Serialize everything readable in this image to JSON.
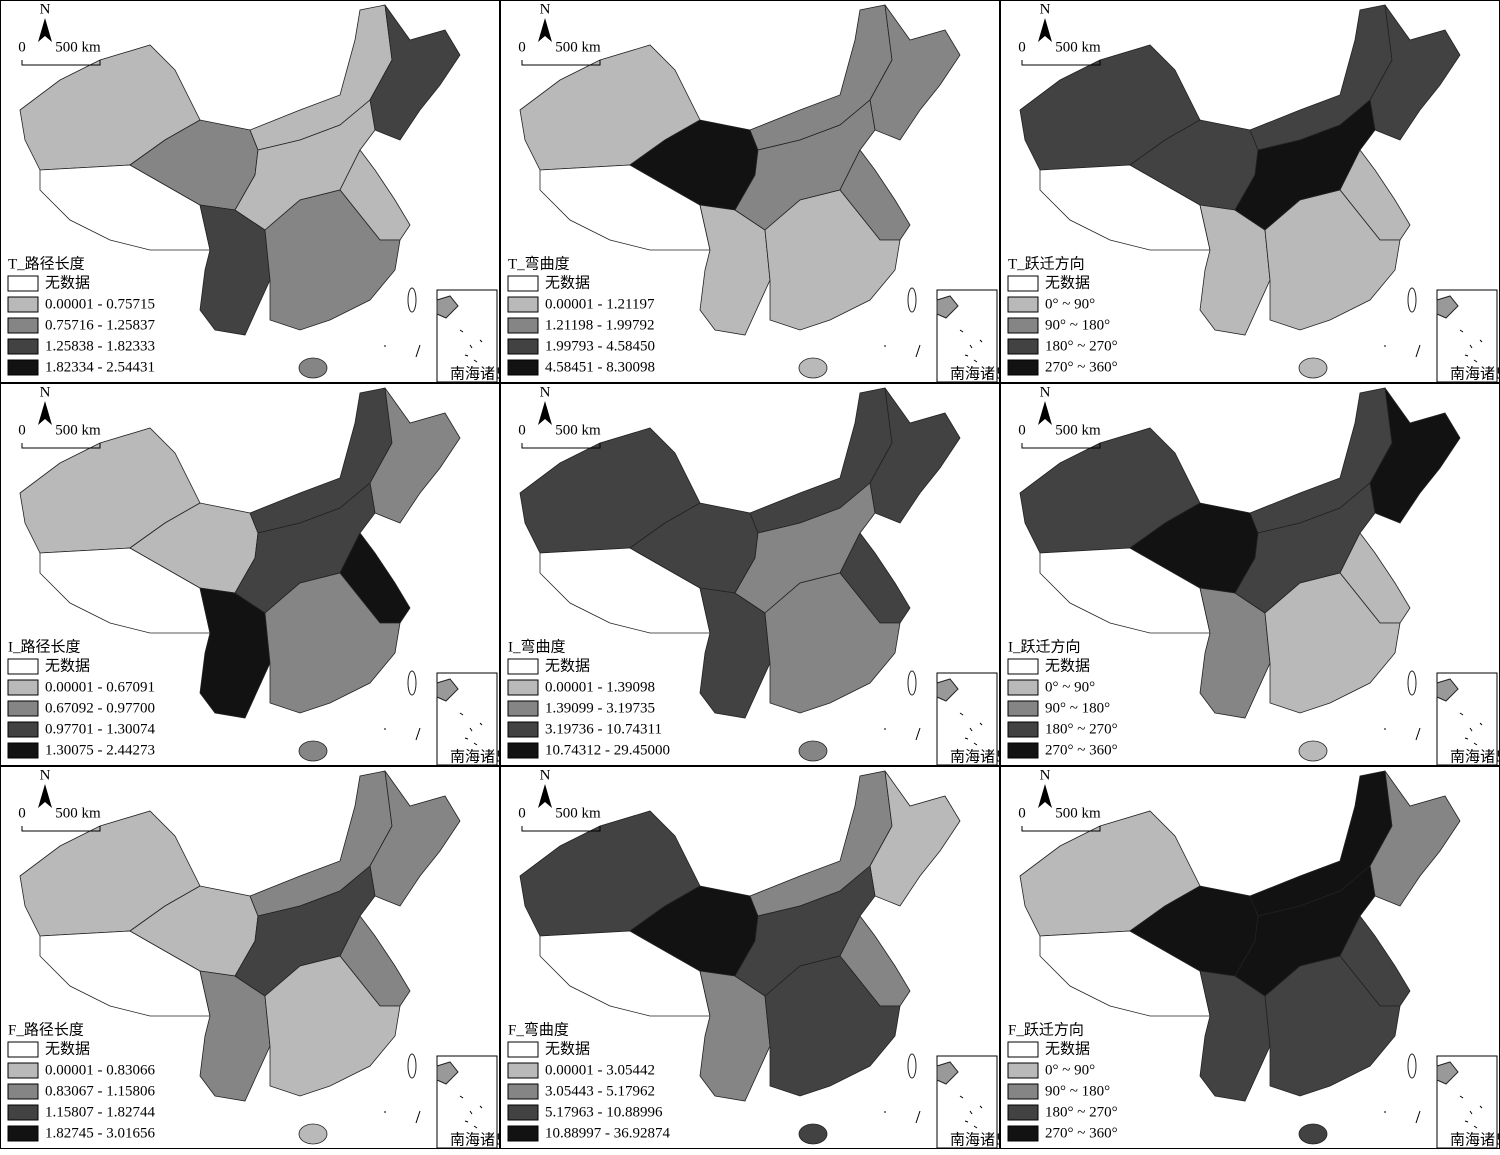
{
  "north_label": "N",
  "scale_labels": [
    "0",
    "500 km"
  ],
  "no_data_label": "无数据",
  "inset_label": "南海诸岛",
  "class_colors": [
    "#b9b9b9",
    "#858585",
    "#424242",
    "#121212"
  ],
  "panels": [
    {
      "title": "T_路径长度",
      "classes": [
        "0.00001 - 0.75715",
        "0.75716 - 1.25837",
        "1.25838 - 1.82333",
        "1.82334 - 2.54431"
      ]
    },
    {
      "title": "T_弯曲度",
      "classes": [
        "0.00001 - 1.21197",
        "1.21198 - 1.99792",
        "1.99793 - 4.58450",
        "4.58451 - 8.30098"
      ]
    },
    {
      "title": "T_跃迁方向",
      "classes": [
        "0° ~ 90°",
        "90° ~ 180°",
        "180° ~ 270°",
        "270° ~ 360°"
      ]
    },
    {
      "title": "I_路径长度",
      "classes": [
        "0.00001 - 0.67091",
        "0.67092 - 0.97700",
        "0.97701 - 1.30074",
        "1.30075 - 2.44273"
      ]
    },
    {
      "title": "I_弯曲度",
      "classes": [
        "0.00001 - 1.39098",
        "1.39099 - 3.19735",
        "3.19736 - 10.74311",
        "10.74312 - 29.45000"
      ]
    },
    {
      "title": "I_跃迁方向",
      "classes": [
        "0° ~ 90°",
        "90° ~ 180°",
        "180° ~ 270°",
        "270° ~ 360°"
      ]
    },
    {
      "title": "F_路径长度",
      "classes": [
        "0.00001 - 0.83066",
        "0.83067 - 1.15806",
        "1.15807 - 1.82744",
        "1.82745 - 3.01656"
      ]
    },
    {
      "title": "F_弯曲度",
      "classes": [
        "0.00001 - 3.05442",
        "3.05443 - 5.17962",
        "5.17963 - 10.88996",
        "10.88997 - 36.92874"
      ]
    },
    {
      "title": "F_跃迁方向",
      "classes": [
        "0° ~ 90°",
        "90° ~ 180°",
        "180° ~ 270°",
        "270° ~ 360°"
      ]
    }
  ]
}
